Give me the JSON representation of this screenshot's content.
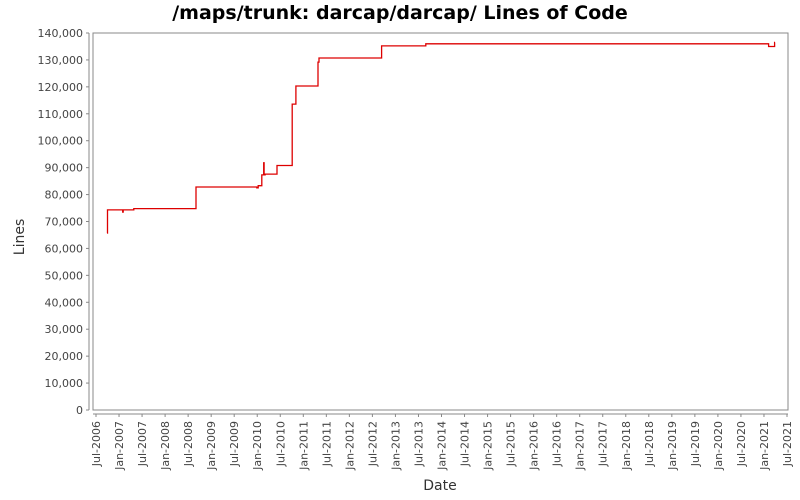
{
  "chart_data": {
    "type": "line",
    "step": true,
    "title": "/maps/trunk: darcap/darcap/ Lines of Code",
    "xlabel": "Date",
    "ylabel": "Lines",
    "ylim": [
      0,
      140000
    ],
    "xlim": [
      "Jul-2006",
      "Jul-2021"
    ],
    "grid": false,
    "legend": null,
    "series_color": "#dd0000",
    "y_ticks": [
      "0",
      "10,000",
      "20,000",
      "30,000",
      "40,000",
      "50,000",
      "60,000",
      "70,000",
      "80,000",
      "90,000",
      "100,000",
      "110,000",
      "120,000",
      "130,000",
      "140,000"
    ],
    "x_ticks": [
      "Jul-2006",
      "Jan-2007",
      "Jul-2007",
      "Jan-2008",
      "Jul-2008",
      "Jan-2009",
      "Jul-2009",
      "Jan-2010",
      "Jul-2010",
      "Jan-2011",
      "Jul-2011",
      "Jan-2012",
      "Jul-2012",
      "Jan-2013",
      "Jul-2013",
      "Jan-2014",
      "Jul-2014",
      "Jan-2015",
      "Jul-2015",
      "Jan-2016",
      "Jul-2016",
      "Jan-2017",
      "Jul-2017",
      "Jan-2018",
      "Jul-2018",
      "Jan-2019",
      "Jul-2019",
      "Jan-2020",
      "Jul-2020",
      "Jan-2021",
      "Jul-2021"
    ],
    "series": [
      {
        "name": "Lines of Code",
        "x": [
          2006.74,
          2006.75,
          2007.08,
          2007.09,
          2007.32,
          2008.67,
          2009.99,
          2010.02,
          2010.1,
          2010.14,
          2010.15,
          2010.17,
          2010.43,
          2010.76,
          2010.84,
          2011.32,
          2011.34,
          2012.7,
          2013.66,
          2021.1,
          2021.23,
          2021.24
        ],
        "values": [
          65700,
          74300,
          73500,
          74300,
          74800,
          82800,
          82500,
          83300,
          87300,
          91800,
          87300,
          87600,
          90800,
          113600,
          120300,
          129200,
          130700,
          135200,
          136000,
          135000,
          136500,
          136500
        ]
      }
    ]
  }
}
